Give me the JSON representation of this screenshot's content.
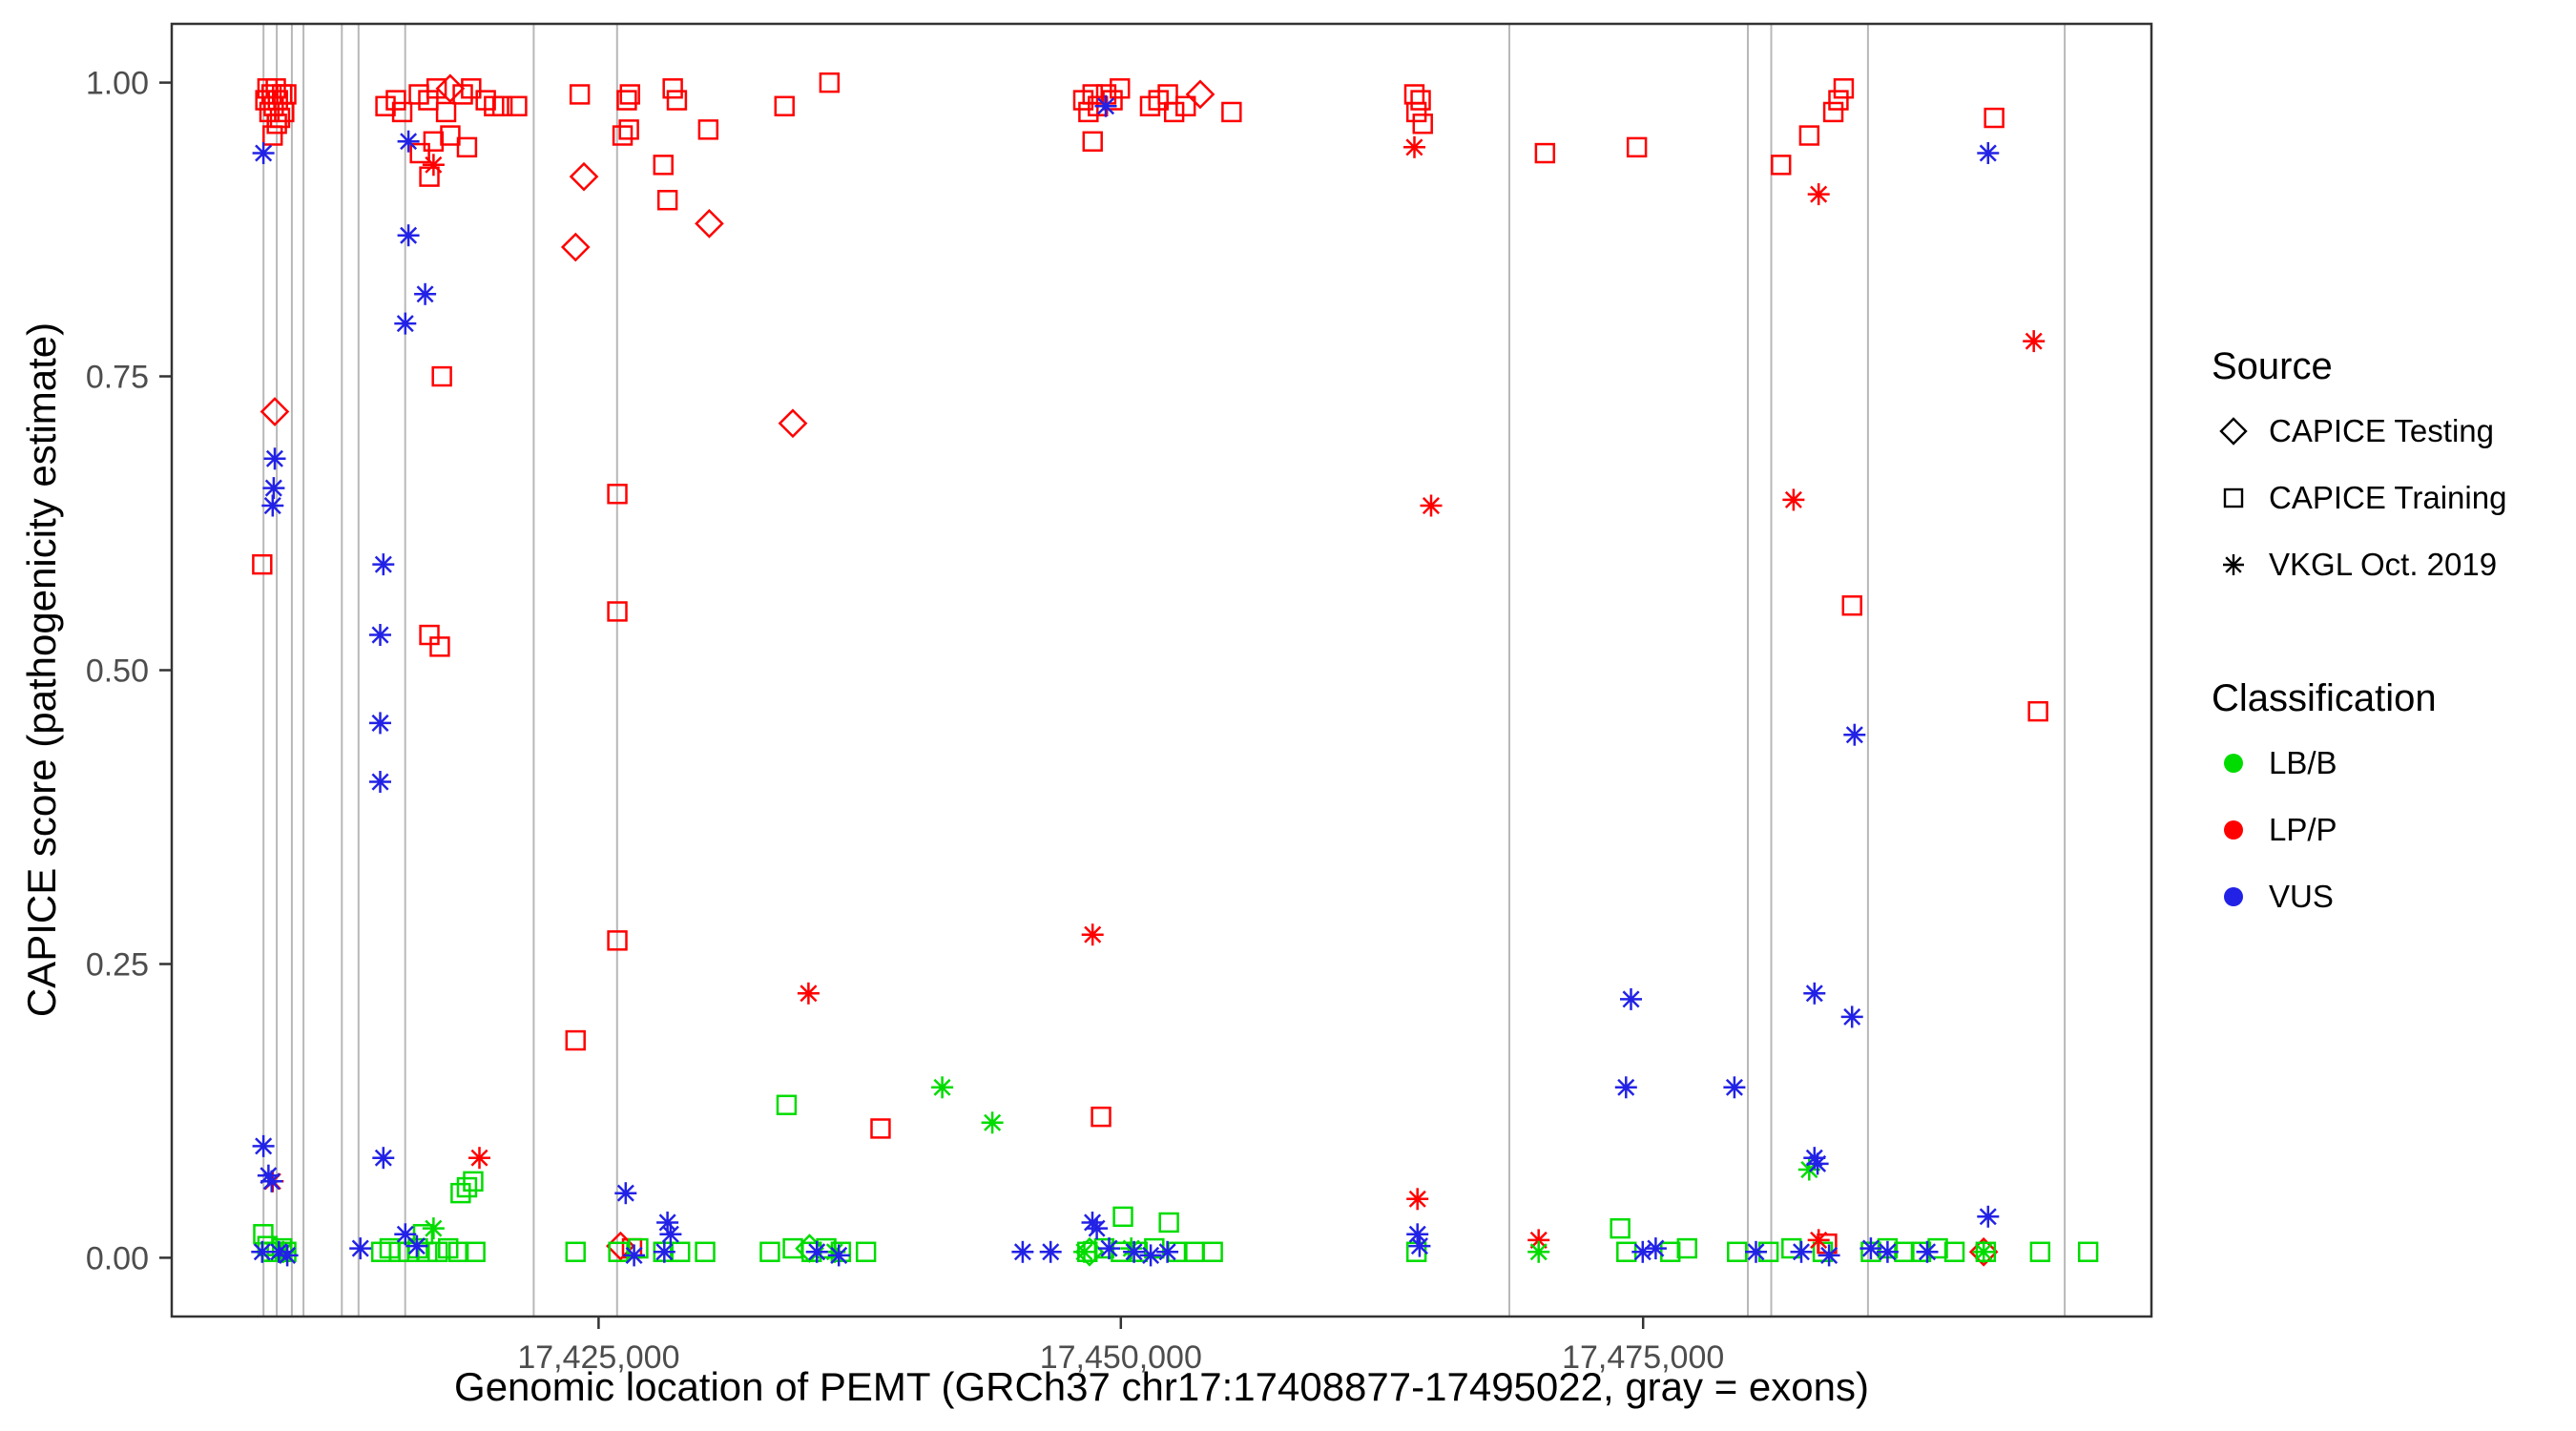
{
  "figure": {
    "background": "#FFFFFF",
    "panel_border_color": "#333333",
    "tick_label_color": "#4D4D4D"
  },
  "legend": {
    "source": {
      "title": "Source",
      "items": [
        {
          "label": "CAPICE Testing",
          "shape": "diamond"
        },
        {
          "label": "CAPICE Training",
          "shape": "square"
        },
        {
          "label": "VKGL Oct. 2019",
          "shape": "asterisk"
        }
      ]
    },
    "classification": {
      "title": "Classification",
      "items": [
        {
          "label": "LB/B",
          "color": "#00DC00"
        },
        {
          "label": "LP/P",
          "color": "#FF0000"
        },
        {
          "label": "VUS",
          "color": "#2222E6"
        }
      ]
    }
  },
  "chart_data": {
    "type": "scatter",
    "title": "",
    "xlabel": "Genomic location of PEMT (GRCh37 chr17:17408877-17495022, gray = exons)",
    "ylabel": "CAPICE score (pathogenicity estimate)",
    "xlim": [
      17404570,
      17499330
    ],
    "ylim": [
      -0.05,
      1.05
    ],
    "grid": false,
    "legend_position": "right",
    "x_ticks": [
      {
        "value": 17425000,
        "label": "17,425,000"
      },
      {
        "value": 17450000,
        "label": "17,450,000"
      },
      {
        "value": 17475000,
        "label": "17,475,000"
      }
    ],
    "y_ticks": [
      {
        "value": 0.0,
        "label": "0.00"
      },
      {
        "value": 0.25,
        "label": "0.25"
      },
      {
        "value": 0.5,
        "label": "0.50"
      },
      {
        "value": 0.75,
        "label": "0.75"
      },
      {
        "value": 1.0,
        "label": "1.00"
      }
    ],
    "exon_lines": {
      "color": "#B8B8B8",
      "x_values": [
        17408961,
        17409600,
        17410318,
        17410877,
        17412713,
        17413511,
        17415746,
        17421894,
        17425886,
        17468596,
        17480012,
        17481130,
        17485760,
        17495180
      ]
    },
    "series": [
      {
        "name": "CAPICE Testing / LP/P",
        "source": "CAPICE Testing",
        "classification": "LP/P",
        "shape": "diamond",
        "color": "#FF0000",
        "points": [
          [
            17409500,
            0.72
          ],
          [
            17417900,
            0.995
          ],
          [
            17423900,
            0.86
          ],
          [
            17424300,
            0.92
          ],
          [
            17430300,
            0.88
          ],
          [
            17434300,
            0.71
          ],
          [
            17453800,
            0.99
          ],
          [
            17426050,
            0.01
          ],
          [
            17491300,
            0.005
          ]
        ]
      },
      {
        "name": "CAPICE Testing / LB/B",
        "source": "CAPICE Testing",
        "classification": "LB/B",
        "shape": "diamond",
        "color": "#00DC00",
        "points": [
          [
            17435100,
            0.008
          ],
          [
            17448500,
            0.005
          ]
        ]
      },
      {
        "name": "CAPICE Training / LP/P",
        "source": "CAPICE Training",
        "classification": "LP/P",
        "shape": "square",
        "color": "#FF0000",
        "points": [
          [
            17408900,
            0.59
          ],
          [
            17409050,
            0.985
          ],
          [
            17409150,
            0.995
          ],
          [
            17409250,
            0.975
          ],
          [
            17409350,
            0.99
          ],
          [
            17409450,
            0.98
          ],
          [
            17409550,
            0.995
          ],
          [
            17409650,
            0.985
          ],
          [
            17409750,
            0.97
          ],
          [
            17409850,
            0.99
          ],
          [
            17409950,
            0.975
          ],
          [
            17409400,
            0.955
          ],
          [
            17409600,
            0.965
          ],
          [
            17410050,
            0.99
          ],
          [
            17414800,
            0.98
          ],
          [
            17415300,
            0.985
          ],
          [
            17415600,
            0.975
          ],
          [
            17416400,
            0.99
          ],
          [
            17416850,
            0.985
          ],
          [
            17417250,
            0.995
          ],
          [
            17417700,
            0.975
          ],
          [
            17418500,
            0.99
          ],
          [
            17418900,
            0.995
          ],
          [
            17419600,
            0.985
          ],
          [
            17420000,
            0.98
          ],
          [
            17420400,
            0.98
          ],
          [
            17421100,
            0.98
          ],
          [
            17416450,
            0.94
          ],
          [
            17417100,
            0.95
          ],
          [
            17417900,
            0.955
          ],
          [
            17418700,
            0.945
          ],
          [
            17416900,
            0.92
          ],
          [
            17417500,
            0.75
          ],
          [
            17416900,
            0.53
          ],
          [
            17417400,
            0.52
          ],
          [
            17424100,
            0.99
          ],
          [
            17426150,
            0.955
          ],
          [
            17426350,
            0.985
          ],
          [
            17426500,
            0.99
          ],
          [
            17426450,
            0.96
          ],
          [
            17428550,
            0.995
          ],
          [
            17428750,
            0.985
          ],
          [
            17428100,
            0.93
          ],
          [
            17428300,
            0.9
          ],
          [
            17430250,
            0.96
          ],
          [
            17425900,
            0.65
          ],
          [
            17425900,
            0.55
          ],
          [
            17425900,
            0.27
          ],
          [
            17423900,
            0.185
          ],
          [
            17426600,
            0.008
          ],
          [
            17433900,
            0.98
          ],
          [
            17436050,
            1.0
          ],
          [
            17438500,
            0.11
          ],
          [
            17448200,
            0.985
          ],
          [
            17448450,
            0.975
          ],
          [
            17448650,
            0.99
          ],
          [
            17448900,
            0.98
          ],
          [
            17449300,
            0.99
          ],
          [
            17449600,
            0.985
          ],
          [
            17449950,
            0.995
          ],
          [
            17448650,
            0.95
          ],
          [
            17451400,
            0.98
          ],
          [
            17451800,
            0.985
          ],
          [
            17452250,
            0.99
          ],
          [
            17452550,
            0.975
          ],
          [
            17453100,
            0.98
          ],
          [
            17455300,
            0.975
          ],
          [
            17449050,
            0.12
          ],
          [
            17464050,
            0.99
          ],
          [
            17464350,
            0.985
          ],
          [
            17464150,
            0.975
          ],
          [
            17464450,
            0.965
          ],
          [
            17470300,
            0.94
          ],
          [
            17474700,
            0.945
          ],
          [
            17481600,
            0.93
          ],
          [
            17482950,
            0.955
          ],
          [
            17484350,
            0.985
          ],
          [
            17484600,
            0.995
          ],
          [
            17484100,
            0.975
          ],
          [
            17485000,
            0.555
          ],
          [
            17483800,
            0.012
          ],
          [
            17491800,
            0.97
          ],
          [
            17493900,
            0.465
          ]
        ]
      },
      {
        "name": "CAPICE Training / LB/B",
        "source": "CAPICE Training",
        "classification": "LB/B",
        "shape": "square",
        "color": "#00DC00",
        "points": [
          [
            17408950,
            0.02
          ],
          [
            17409150,
            0.01
          ],
          [
            17409350,
            0.005
          ],
          [
            17409600,
            0.005
          ],
          [
            17409850,
            0.008
          ],
          [
            17410050,
            0.005
          ],
          [
            17414600,
            0.005
          ],
          [
            17415000,
            0.008
          ],
          [
            17415450,
            0.005
          ],
          [
            17415900,
            0.005
          ],
          [
            17416350,
            0.008
          ],
          [
            17416800,
            0.005
          ],
          [
            17417300,
            0.005
          ],
          [
            17417800,
            0.008
          ],
          [
            17418300,
            0.005
          ],
          [
            17419100,
            0.005
          ],
          [
            17418700,
            0.06
          ],
          [
            17419000,
            0.065
          ],
          [
            17418400,
            0.055
          ],
          [
            17416600,
            0.02
          ],
          [
            17423900,
            0.005
          ],
          [
            17425950,
            0.005
          ],
          [
            17426900,
            0.008
          ],
          [
            17428100,
            0.005
          ],
          [
            17428900,
            0.005
          ],
          [
            17430100,
            0.005
          ],
          [
            17434000,
            0.13
          ],
          [
            17433200,
            0.005
          ],
          [
            17434300,
            0.008
          ],
          [
            17435200,
            0.005
          ],
          [
            17435900,
            0.008
          ],
          [
            17436600,
            0.005
          ],
          [
            17437800,
            0.005
          ],
          [
            17450100,
            0.035
          ],
          [
            17452300,
            0.03
          ],
          [
            17448400,
            0.005
          ],
          [
            17449200,
            0.008
          ],
          [
            17450000,
            0.005
          ],
          [
            17450800,
            0.005
          ],
          [
            17451600,
            0.008
          ],
          [
            17452700,
            0.005
          ],
          [
            17453500,
            0.005
          ],
          [
            17454400,
            0.005
          ],
          [
            17464150,
            0.005
          ],
          [
            17473900,
            0.025
          ],
          [
            17474200,
            0.005
          ],
          [
            17476300,
            0.005
          ],
          [
            17477100,
            0.008
          ],
          [
            17479500,
            0.005
          ],
          [
            17481000,
            0.005
          ],
          [
            17482100,
            0.008
          ],
          [
            17483600,
            0.005
          ],
          [
            17485900,
            0.005
          ],
          [
            17486700,
            0.008
          ],
          [
            17487500,
            0.005
          ],
          [
            17488300,
            0.005
          ],
          [
            17489100,
            0.008
          ],
          [
            17489900,
            0.005
          ],
          [
            17491400,
            0.005
          ],
          [
            17494000,
            0.005
          ],
          [
            17496300,
            0.005
          ]
        ]
      },
      {
        "name": "VKGL Oct. 2019 / LP/P",
        "source": "VKGL Oct. 2019",
        "classification": "LP/P",
        "shape": "asterisk",
        "color": "#FF0000",
        "points": [
          [
            17409400,
            0.065
          ],
          [
            17417100,
            0.93
          ],
          [
            17419300,
            0.085
          ],
          [
            17435050,
            0.225
          ],
          [
            17448650,
            0.275
          ],
          [
            17464050,
            0.945
          ],
          [
            17464850,
            0.64
          ],
          [
            17464200,
            0.05
          ],
          [
            17470000,
            0.015
          ],
          [
            17482200,
            0.645
          ],
          [
            17483400,
            0.905
          ],
          [
            17483400,
            0.015
          ],
          [
            17493700,
            0.78
          ]
        ]
      },
      {
        "name": "VKGL Oct. 2019 / LB/B",
        "source": "VKGL Oct. 2019",
        "classification": "LB/B",
        "shape": "asterisk",
        "color": "#00DC00",
        "points": [
          [
            17409900,
            0.005
          ],
          [
            17417100,
            0.025
          ],
          [
            17436300,
            0.005
          ],
          [
            17441450,
            0.145
          ],
          [
            17443850,
            0.115
          ],
          [
            17448250,
            0.005
          ],
          [
            17450500,
            0.008
          ],
          [
            17470000,
            0.005
          ],
          [
            17482950,
            0.075
          ],
          [
            17491300,
            0.005
          ]
        ]
      },
      {
        "name": "VKGL Oct. 2019 / VUS",
        "source": "VKGL Oct. 2019",
        "classification": "VUS",
        "shape": "asterisk",
        "color": "#2222E6",
        "points": [
          [
            17408960,
            0.94
          ],
          [
            17409500,
            0.68
          ],
          [
            17409450,
            0.655
          ],
          [
            17409400,
            0.64
          ],
          [
            17408960,
            0.095
          ],
          [
            17409200,
            0.07
          ],
          [
            17409350,
            0.065
          ],
          [
            17408900,
            0.005
          ],
          [
            17409700,
            0.005
          ],
          [
            17410100,
            0.002
          ],
          [
            17415900,
            0.95
          ],
          [
            17415900,
            0.87
          ],
          [
            17416700,
            0.82
          ],
          [
            17415750,
            0.795
          ],
          [
            17414700,
            0.59
          ],
          [
            17414550,
            0.53
          ],
          [
            17414550,
            0.455
          ],
          [
            17414550,
            0.405
          ],
          [
            17414700,
            0.085
          ],
          [
            17415750,
            0.02
          ],
          [
            17413600,
            0.008
          ],
          [
            17416300,
            0.01
          ],
          [
            17426300,
            0.055
          ],
          [
            17428300,
            0.03
          ],
          [
            17428450,
            0.02
          ],
          [
            17428150,
            0.005
          ],
          [
            17426700,
            0.002
          ],
          [
            17435450,
            0.005
          ],
          [
            17436500,
            0.002
          ],
          [
            17449280,
            0.98
          ],
          [
            17448640,
            0.03
          ],
          [
            17448850,
            0.025
          ],
          [
            17445300,
            0.005
          ],
          [
            17446640,
            0.005
          ],
          [
            17449440,
            0.008
          ],
          [
            17450630,
            0.005
          ],
          [
            17451430,
            0.002
          ],
          [
            17452230,
            0.005
          ],
          [
            17464200,
            0.02
          ],
          [
            17464300,
            0.01
          ],
          [
            17474420,
            0.22
          ],
          [
            17474180,
            0.145
          ],
          [
            17474980,
            0.005
          ],
          [
            17475600,
            0.008
          ],
          [
            17479370,
            0.145
          ],
          [
            17483200,
            0.225
          ],
          [
            17485000,
            0.205
          ],
          [
            17485120,
            0.445
          ],
          [
            17483200,
            0.085
          ],
          [
            17483350,
            0.08
          ],
          [
            17480400,
            0.005
          ],
          [
            17482570,
            0.005
          ],
          [
            17485900,
            0.008
          ],
          [
            17486700,
            0.005
          ],
          [
            17483900,
            0.002
          ],
          [
            17491510,
            0.94
          ],
          [
            17491510,
            0.035
          ],
          [
            17488600,
            0.005
          ]
        ]
      }
    ]
  }
}
